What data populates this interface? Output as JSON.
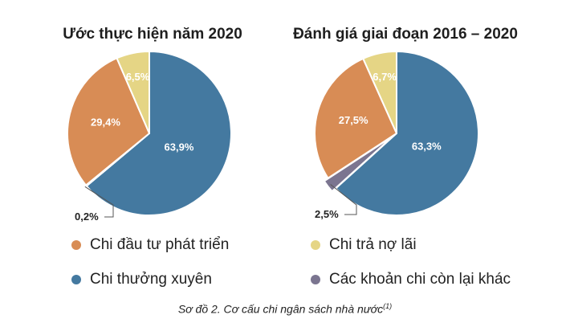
{
  "colors": {
    "dau_tu": "#d88c55",
    "thuong_xuyen": "#4479a0",
    "tra_no": "#e5d585",
    "con_lai": "#7b7590"
  },
  "legend": {
    "dau_tu": "Chi đầu tư phát triển",
    "tra_no": "Chi trả nợ lãi",
    "thuong_xuyen": "Chi thưởng xuyên",
    "con_lai": "Các khoản chi còn lại khác"
  },
  "caption": {
    "text": "Sơ đồ 2. Cơ cấu chi ngân sách nhà nước",
    "sup": "(1)"
  },
  "chart_data": [
    {
      "type": "pie",
      "title": "Ước thực hiện năm 2020",
      "slices": [
        {
          "key": "thuong_xuyen",
          "value": 63.9,
          "label": "63,9%"
        },
        {
          "key": "con_lai",
          "value": 0.2,
          "label": "0,2%"
        },
        {
          "key": "dau_tu",
          "value": 29.4,
          "label": "29,4%"
        },
        {
          "key": "tra_no",
          "value": 6.5,
          "label": "6,5%"
        }
      ]
    },
    {
      "type": "pie",
      "title": "Đánh giá giai đoạn 2016 – 2020",
      "slices": [
        {
          "key": "thuong_xuyen",
          "value": 63.3,
          "label": "63,3%"
        },
        {
          "key": "con_lai",
          "value": 2.5,
          "label": "2,5%"
        },
        {
          "key": "dau_tu",
          "value": 27.5,
          "label": "27,5%"
        },
        {
          "key": "tra_no",
          "value": 6.7,
          "label": "6,7%"
        }
      ]
    }
  ]
}
